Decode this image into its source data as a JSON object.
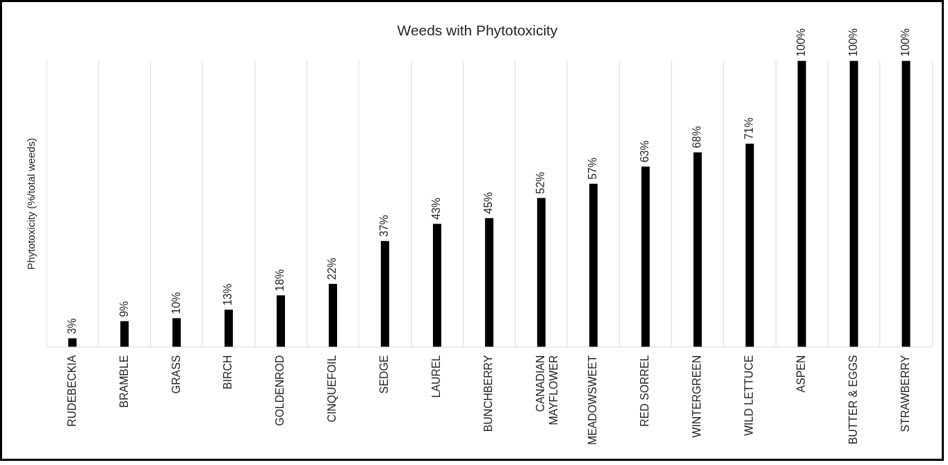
{
  "chart_data": {
    "type": "bar",
    "title": "Weeds with Phytotoxicity",
    "ylabel": "Phytotoxicity (%/total weeds)",
    "categories": [
      "RUDEBECKIA",
      "BRAMBLE",
      "GRASS",
      "BIRCH",
      "GOLDENROD",
      "CINQUEFOIL",
      "SEDGE",
      "LAUREL",
      "BUNCHBERRY",
      "CANADIAN MAYFLOWER",
      "MEADOWSWEET",
      "RED SORREL",
      "WINTERGREEN",
      "WILD LETTUCE",
      "ASPEN",
      "BUTTER & EGGS",
      "STRAWBERRY"
    ],
    "values": [
      3,
      9,
      10,
      13,
      18,
      22,
      37,
      43,
      45,
      52,
      57,
      63,
      68,
      71,
      100,
      100,
      100
    ],
    "value_labels": [
      "3%",
      "9%",
      "10%",
      "13%",
      "18%",
      "22%",
      "37%",
      "43%",
      "45%",
      "52%",
      "57%",
      "63%",
      "68%",
      "71%",
      "100%",
      "100%",
      "100%"
    ],
    "color": "#000000",
    "ylim": [
      0,
      100
    ],
    "grid": "x",
    "tick_labels": "x",
    "legend": false
  }
}
